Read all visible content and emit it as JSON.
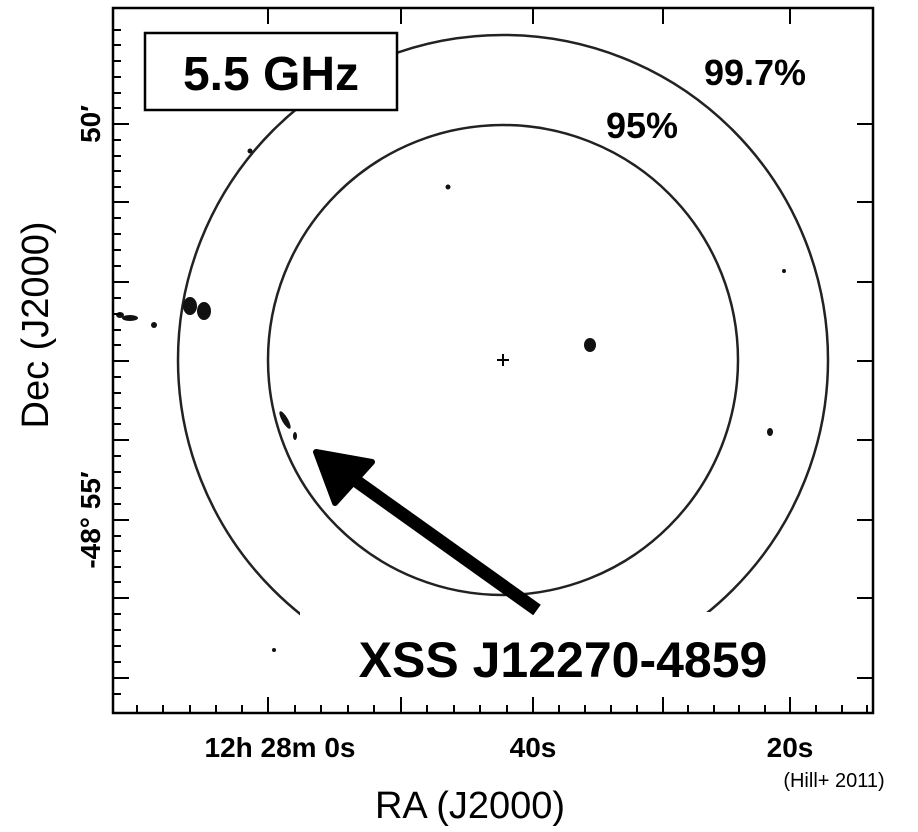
{
  "figure": {
    "band_label": "5.5 GHz",
    "contour_labels": [
      "99.7%",
      "95%"
    ],
    "source_label": "XSS J12270-4859",
    "x_axis": {
      "label": "RA (J2000)",
      "tick_labels": [
        "12h 28m 0s",
        "40s",
        "20s"
      ]
    },
    "y_axis": {
      "label": "Dec (J2000)",
      "tick_labels": [
        "50′",
        "-48° 55′"
      ]
    },
    "credit": "(Hill+ 2011)"
  }
}
